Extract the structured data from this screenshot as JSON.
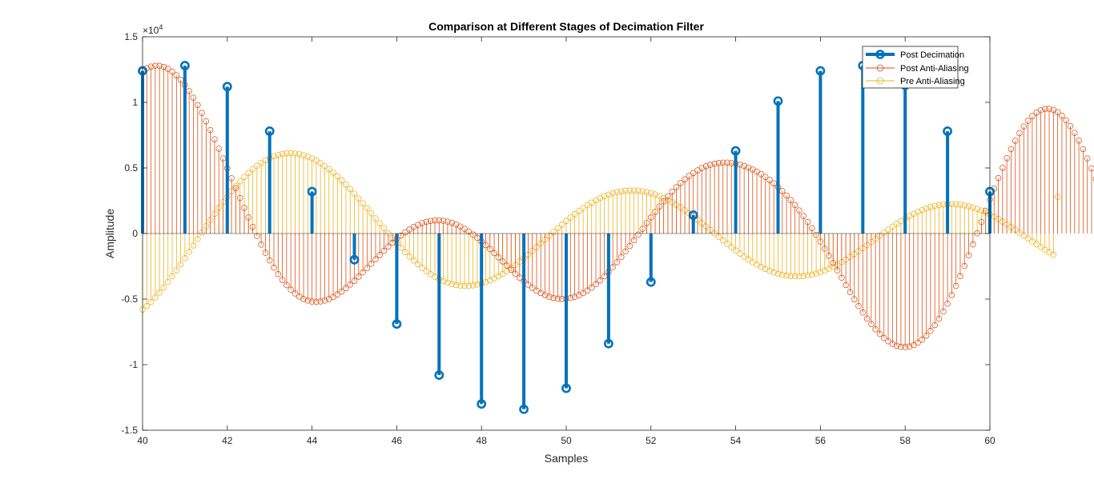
{
  "chart_data": {
    "type": "stem",
    "title": "Comparison at Different Stages of Decimation Filter",
    "xlabel": "Samples",
    "ylabel": "Amplitude",
    "xlim": [
      40,
      60
    ],
    "ylim": [
      -15000,
      15000
    ],
    "y_exponent_label": "×10",
    "y_exponent_power": "4",
    "x_ticks": [
      40,
      42,
      44,
      46,
      48,
      50,
      52,
      54,
      56,
      58,
      60
    ],
    "x_tick_labels": [
      "40",
      "42",
      "44",
      "46",
      "48",
      "50",
      "52",
      "54",
      "56",
      "58",
      "60"
    ],
    "y_ticks": [
      -15000,
      -10000,
      -5000,
      0,
      5000,
      10000,
      15000
    ],
    "y_tick_labels": [
      "-1.5",
      "-1",
      "-0.5",
      "0",
      "0.5",
      "1",
      "1.5"
    ],
    "legend_position": "top-right",
    "grid": false,
    "series": [
      {
        "name": "Post Decimation",
        "color": "#0072BD",
        "x": [
          40,
          41,
          42,
          43,
          44,
          45,
          46,
          47,
          48,
          49,
          50,
          51,
          52,
          53,
          54,
          55,
          56,
          57,
          58,
          59,
          60
        ],
        "y": [
          12400,
          12800,
          11200,
          7800,
          3200,
          -2000,
          -6900,
          -10800,
          -13000,
          -13400,
          -11800,
          -8400,
          -3700,
          1400,
          6300,
          10100,
          12400,
          12800,
          11300,
          7800,
          3200
        ]
      },
      {
        "name": "Post Anti-Aliasing",
        "color": "#D95319",
        "x_start": 40,
        "x_step": 0.1,
        "y": [
          12400,
          12596,
          12727,
          12789,
          12782,
          12704,
          12558,
          12343,
          12064,
          11721,
          11320,
          10862,
          10353,
          9796,
          9196,
          8557,
          7886,
          7186,
          6464,
          5724,
          4973,
          4215,
          3456,
          2701,
          1955,
          1223,
          509,
          -182,
          -842,
          -1467,
          -2052,
          -2595,
          -3091,
          -3539,
          -3936,
          -4280,
          -4571,
          -4806,
          -4987,
          -5113,
          -5187,
          -5209,
          -5183,
          -5110,
          -4994,
          -4839,
          -4647,
          -4423,
          -4171,
          -3895,
          -3600,
          -3288,
          -2965,
          -2634,
          -2300,
          -1965,
          -1634,
          -1311,
          -998,
          -699,
          -416,
          -152,
          89,
          306,
          497,
          659,
          791,
          892,
          961,
          997,
          1000,
          970,
          907,
          813,
          689,
          535,
          355,
          149,
          -80,
          -331,
          -600,
          -886,
          -1185,
          -1494,
          -1810,
          -2129,
          -2447,
          -2762,
          -3068,
          -3363,
          -3642,
          -3903,
          -4142,
          -4356,
          -4542,
          -4697,
          -4821,
          -4911,
          -4966,
          -4986,
          -4970,
          -4917,
          -4828,
          -4703,
          -4542,
          -4348,
          -4122,
          -3864,
          -3576,
          -3262,
          -2924,
          -2562,
          -2181,
          -1783,
          -1371,
          -948,
          -517,
          -82,
          355,
          790,
          1221,
          1644,
          2055,
          2452,
          2831,
          3191,
          3528,
          3841,
          4127,
          4386,
          4617,
          4817,
          4988,
          5128,
          5239,
          5321,
          5375,
          5401,
          5400,
          5374,
          5323,
          5248,
          5149,
          5028,
          4884,
          4718,
          4530,
          4318,
          4083,
          3825,
          3543,
          3236,
          2905,
          2548,
          2167,
          1760,
          1329,
          875,
          398,
          -100,
          -617,
          -1150,
          -1696,
          -2250,
          -2810,
          -3370,
          -3927,
          -4475,
          -5010,
          -5526,
          -6019,
          -6483,
          -6914,
          -7307,
          -7657,
          -7961,
          -8213,
          -8412,
          -8554,
          -8636,
          -8656,
          -8612,
          -8503,
          -8329,
          -8089,
          -7784,
          -7415,
          -6984,
          -6493,
          -5945,
          -5343,
          -4690,
          -3991,
          -3250,
          -2473,
          -1665,
          -831,
          18,
          876,
          1734,
          2584,
          3418,
          4228,
          5006,
          5744,
          6435,
          7072,
          7648,
          8156,
          8591,
          8947,
          9220,
          9406,
          9503,
          9509,
          9424,
          9248,
          8981,
          8627,
          8190,
          7675,
          7087,
          6434,
          5723,
          4962,
          4160,
          3200
        ]
      },
      {
        "name": "Pre Anti-Aliasing",
        "color": "#EDB120",
        "x_start": 40,
        "x_step": 0.1,
        "y": [
          -5800,
          -5521,
          -5210,
          -4870,
          -4503,
          -4111,
          -3697,
          -3264,
          -2814,
          -2351,
          -1877,
          -1395,
          -909,
          -420,
          68,
          552,
          1029,
          1497,
          1953,
          2394,
          2818,
          3223,
          3608,
          3970,
          4307,
          4619,
          4904,
          5160,
          5388,
          5586,
          5753,
          5889,
          5994,
          6067,
          6110,
          6121,
          6101,
          6051,
          5971,
          5862,
          5724,
          5558,
          5366,
          5148,
          4906,
          4641,
          4355,
          4050,
          3727,
          3388,
          3036,
          2673,
          2301,
          1922,
          1539,
          1154,
          769,
          386,
          7,
          -365,
          -729,
          -1082,
          -1423,
          -1749,
          -2058,
          -2348,
          -2618,
          -2866,
          -3092,
          -3294,
          -3471,
          -3623,
          -3749,
          -3849,
          -3922,
          -3969,
          -3989,
          -3983,
          -3951,
          -3894,
          -3813,
          -3708,
          -3580,
          -3430,
          -3260,
          -3070,
          -2862,
          -2638,
          -2399,
          -2147,
          -1883,
          -1610,
          -1329,
          -1043,
          -753,
          -461,
          -170,
          119,
          405,
          685,
          958,
          1222,
          1475,
          1716,
          1944,
          2157,
          2354,
          2535,
          2698,
          2842,
          2967,
          3072,
          3157,
          3221,
          3264,
          3285,
          3286,
          3265,
          3223,
          3161,
          3078,
          2976,
          2854,
          2714,
          2556,
          2382,
          2192,
          1988,
          1771,
          1542,
          1303,
          1055,
          800,
          540,
          276,
          10,
          -256,
          -521,
          -782,
          -1038,
          -1287,
          -1527,
          -1757,
          -1975,
          -2180,
          -2370,
          -2544,
          -2701,
          -2840,
          -2961,
          -3062,
          -3143,
          -3203,
          -3243,
          -3262,
          -3260,
          -3237,
          -3194,
          -3131,
          -3048,
          -2946,
          -2827,
          -2690,
          -2537,
          -2369,
          -2187,
          -1993,
          -1788,
          -1573,
          -1350,
          -1121,
          -887,
          -650,
          -411,
          -172,
          64,
          296,
          522,
          740,
          948,
          1145,
          1329,
          1499,
          1654,
          1792,
          1913,
          2016,
          2100,
          2165,
          2211,
          2237,
          2243,
          2229,
          2195,
          2142,
          2070,
          1980,
          1872,
          1748,
          1607,
          1452,
          1284,
          1103,
          911,
          710,
          501,
          286,
          66,
          -157,
          -380,
          -601,
          -818,
          -1030,
          -1234,
          -1429,
          -1613,
          2800
        ]
      }
    ]
  }
}
